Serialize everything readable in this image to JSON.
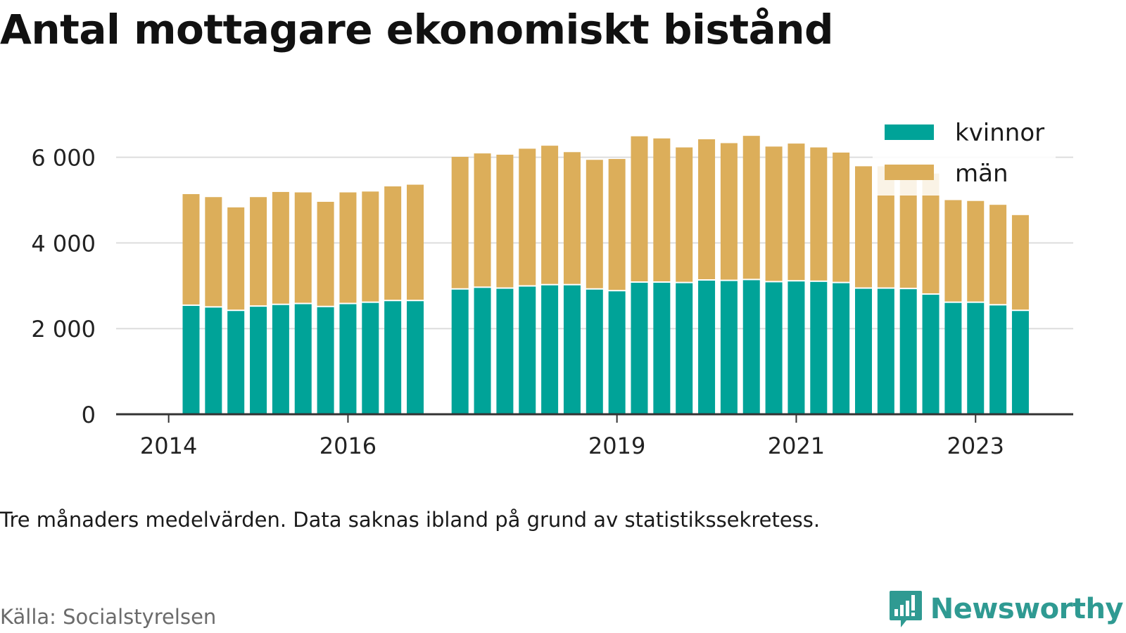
{
  "title": "Antal mottagare ekonomiskt bistånd",
  "note": "Tre månaders medelvärden. Data saknas ibland på grund av statistikssekretess.",
  "source": "Källa: Socialstyrelsen",
  "brand": "Newsworthy",
  "colors": {
    "kvinnor": "#00a398",
    "man": "#dcae5a",
    "grid": "#dddddd",
    "axis": "#333333",
    "brand": "#2f9a92"
  },
  "chart_data": {
    "type": "bar",
    "stacked": true,
    "x_ticks": [
      "2014",
      "2016",
      "2019",
      "2021",
      "2023"
    ],
    "y_ticks": [
      "0",
      "2 000",
      "4 000",
      "6 000"
    ],
    "ylim": [
      0,
      7000
    ],
    "grid": true,
    "legend_position": "top-right",
    "categories": [
      "2014-Q2",
      "2014-Q3",
      "2014-Q4",
      "2015-Q1",
      "2015-Q2",
      "2015-Q3",
      "2015-Q4",
      "2016-Q1",
      "2016-Q2",
      "2016-Q3",
      "2016-Q4",
      "2017-Q1",
      "2017-Q2",
      "2017-Q3",
      "2017-Q4",
      "2018-Q1",
      "2018-Q2",
      "2018-Q3",
      "2018-Q4",
      "2019-Q1",
      "2019-Q2",
      "2019-Q3",
      "2019-Q4",
      "2020-Q1",
      "2020-Q2",
      "2020-Q3",
      "2020-Q4",
      "2021-Q1",
      "2021-Q2",
      "2021-Q3",
      "2021-Q4",
      "2022-Q1",
      "2022-Q2",
      "2022-Q3",
      "2022-Q4",
      "2023-Q1",
      "2023-Q2",
      "2023-Q3",
      "2023-Q4"
    ],
    "series": [
      {
        "name": "kvinnor",
        "values": [
          2530,
          2490,
          2410,
          2510,
          2550,
          2570,
          2500,
          2570,
          2600,
          2640,
          2640,
          null,
          2910,
          2950,
          2930,
          2980,
          3010,
          3010,
          2910,
          2870,
          3070,
          3070,
          3060,
          3120,
          3110,
          3130,
          3080,
          3100,
          3090,
          3060,
          2930,
          2930,
          2920,
          2790,
          2600,
          2600,
          2540,
          2410,
          null
        ]
      },
      {
        "name": "män",
        "values": [
          2610,
          2580,
          2420,
          2560,
          2640,
          2610,
          2460,
          2610,
          2600,
          2680,
          2720,
          null,
          3100,
          3140,
          3130,
          3220,
          3260,
          3110,
          3030,
          3090,
          3420,
          3370,
          3170,
          3300,
          3220,
          3370,
          3170,
          3220,
          3140,
          3050,
          2860,
          2860,
          2850,
          2830,
          2400,
          2380,
          2350,
          2240,
          null
        ]
      }
    ]
  }
}
